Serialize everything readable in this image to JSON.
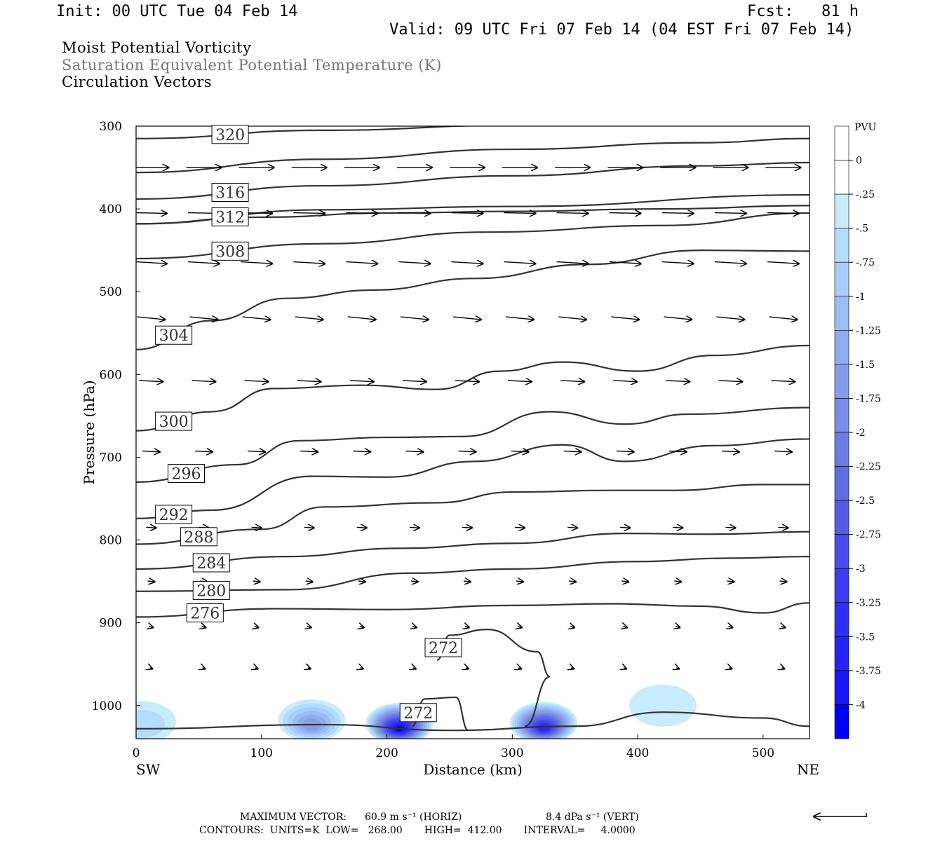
{
  "header": {
    "init": "Init: 00 UTC Tue 04 Feb 14",
    "fcst": "Fcst:   81 h",
    "valid": "Valid: 09 UTC Fri 07 Feb 14 (04 EST Fri 07 Feb 14)"
  },
  "fields": [
    {
      "text": "Moist Potential Vorticity",
      "color": "#000000"
    },
    {
      "text": "Saturation Equivalent Potential Temperature (K)",
      "color": "#777777"
    },
    {
      "text": "Circulation Vectors",
      "color": "#000000"
    }
  ],
  "chart_data": {
    "type": "cross-section",
    "xlabel": "Distance (km)",
    "ylabel": "Pressure (hPa)",
    "xlim": [
      0,
      537
    ],
    "ylim": [
      300,
      1040
    ],
    "y_log": false,
    "y_inverted": true,
    "x_ticks": [
      "0",
      "100",
      "200",
      "300",
      "400",
      "500"
    ],
    "y_ticks": [
      "300",
      "400",
      "500",
      "600",
      "700",
      "800",
      "900",
      "1000"
    ],
    "x_endpoints": {
      "left": "SW",
      "right": "NE"
    },
    "colorbar": {
      "unit": "PVU",
      "labels": [
        "0",
        "-.25",
        "-.5",
        "-.75",
        "-1",
        "-1.25",
        "-1.5",
        "-1.75",
        "-2",
        "-2.25",
        "-2.5",
        "-2.75",
        "-3",
        "-3.25",
        "-3.5",
        "-3.75",
        "-4"
      ],
      "colors": [
        "#ffffff",
        "#ffffff",
        "#c8ecfc",
        "#b4dcfc",
        "#a8cdf8",
        "#9cbcf4",
        "#90acf0",
        "#849cec",
        "#788ce8",
        "#6c7ce4",
        "#606ce4",
        "#545ce8",
        "#484cec",
        "#3c3cf0",
        "#3030f4",
        "#2424f8",
        "#1818fc",
        "#0000ff"
      ]
    },
    "contours": [
      {
        "label": "320",
        "points": [
          [
            0,
            315
          ],
          [
            150,
            305
          ],
          [
            300,
            299
          ],
          [
            537,
            295
          ]
        ]
      },
      {
        "label": "",
        "points": [
          [
            0,
            356
          ],
          [
            150,
            340
          ],
          [
            300,
            328
          ],
          [
            450,
            320
          ],
          [
            537,
            315
          ]
        ]
      },
      {
        "label": "316",
        "points": [
          [
            0,
            388
          ],
          [
            150,
            372
          ],
          [
            300,
            360
          ],
          [
            450,
            348
          ],
          [
            537,
            344
          ]
        ]
      },
      {
        "label": "",
        "points": [
          [
            0,
            418
          ],
          [
            100,
            410
          ],
          [
            200,
            405
          ],
          [
            300,
            403
          ],
          [
            420,
            400
          ],
          [
            537,
            396
          ]
        ]
      },
      {
        "label": "312",
        "points": [
          [
            0,
            418
          ],
          [
            150,
            401
          ],
          [
            300,
            397
          ],
          [
            537,
            383
          ]
        ]
      },
      {
        "label": "308",
        "points": [
          [
            0,
            460
          ],
          [
            150,
            442
          ],
          [
            280,
            428
          ],
          [
            420,
            420
          ],
          [
            537,
            405
          ]
        ]
      },
      {
        "label": "304",
        "points": [
          [
            0,
            570
          ],
          [
            60,
            535
          ],
          [
            120,
            508
          ],
          [
            190,
            498
          ],
          [
            270,
            484
          ],
          [
            360,
            467
          ],
          [
            450,
            450
          ],
          [
            537,
            451
          ]
        ]
      },
      {
        "label": "300",
        "points": [
          [
            0,
            668
          ],
          [
            60,
            645
          ],
          [
            110,
            617
          ],
          [
            180,
            613
          ],
          [
            240,
            618
          ],
          [
            290,
            596
          ],
          [
            340,
            585
          ],
          [
            400,
            596
          ],
          [
            460,
            577
          ],
          [
            537,
            565
          ]
        ]
      },
      {
        "label": "296",
        "points": [
          [
            0,
            730
          ],
          [
            80,
            709
          ],
          [
            130,
            680
          ],
          [
            200,
            676
          ],
          [
            260,
            675
          ],
          [
            330,
            645
          ],
          [
            390,
            660
          ],
          [
            440,
            648
          ],
          [
            537,
            640
          ]
        ]
      },
      {
        "label": "292",
        "points": [
          [
            0,
            774
          ],
          [
            60,
            764
          ],
          [
            140,
            723
          ],
          [
            200,
            724
          ],
          [
            270,
            705
          ],
          [
            340,
            685
          ],
          [
            390,
            705
          ],
          [
            460,
            686
          ],
          [
            537,
            678
          ]
        ]
      },
      {
        "label": "288",
        "points": [
          [
            0,
            805
          ],
          [
            100,
            787
          ],
          [
            150,
            760
          ],
          [
            240,
            755
          ],
          [
            300,
            742
          ],
          [
            380,
            740
          ],
          [
            430,
            740
          ],
          [
            500,
            733
          ],
          [
            537,
            733
          ]
        ]
      },
      {
        "label": "284",
        "points": [
          [
            0,
            835
          ],
          [
            120,
            820
          ],
          [
            210,
            810
          ],
          [
            300,
            804
          ],
          [
            390,
            792
          ],
          [
            460,
            793
          ],
          [
            537,
            790
          ]
        ]
      },
      {
        "label": "280",
        "points": [
          [
            0,
            862
          ],
          [
            120,
            860
          ],
          [
            220,
            840
          ],
          [
            300,
            835
          ],
          [
            400,
            826
          ],
          [
            470,
            822
          ],
          [
            537,
            820
          ]
        ]
      },
      {
        "label": "276",
        "points": [
          [
            0,
            893
          ],
          [
            110,
            883
          ],
          [
            200,
            884
          ],
          [
            300,
            879
          ],
          [
            380,
            877
          ],
          [
            450,
            880
          ],
          [
            500,
            888
          ],
          [
            537,
            876
          ]
        ]
      },
      {
        "label": "272",
        "points": [
          [
            240,
            945
          ],
          [
            250,
            915
          ],
          [
            280,
            908
          ],
          [
            320,
            935
          ],
          [
            330,
            965
          ],
          [
            310,
            1025
          ]
        ]
      },
      {
        "label": "272",
        "points": [
          [
            220,
            1025
          ],
          [
            230,
            992
          ],
          [
            255,
            990
          ],
          [
            265,
            1030
          ]
        ]
      },
      {
        "label": "",
        "points": [
          [
            0,
            1028
          ],
          [
            150,
            1023
          ],
          [
            250,
            1030
          ],
          [
            350,
            1025
          ],
          [
            420,
            1008
          ],
          [
            500,
            1015
          ],
          [
            537,
            1025
          ]
        ]
      }
    ],
    "pv_regions": [
      {
        "x": 5,
        "p": 1020,
        "value": -0.6
      },
      {
        "x": 140,
        "p": 1018,
        "value": -1.5
      },
      {
        "x": 210,
        "p": 1022,
        "value": -4.0
      },
      {
        "x": 325,
        "p": 1021,
        "value": -3.5
      },
      {
        "x": 420,
        "p": 1000,
        "value": -0.3
      }
    ],
    "vectors_note": "circulation vectors, mostly eastward",
    "max_vector_label": "MAXIMUM VECTOR:",
    "max_vector_horiz": "60.9 m s⁻¹ (HORIZ)",
    "max_vector_vert": "8.4 dPa s⁻¹ (VERT)",
    "contour_info": "CONTOURS:  UNITS=K  LOW=   268.00       HIGH=  412.00       INTERVAL=     4.0000"
  }
}
